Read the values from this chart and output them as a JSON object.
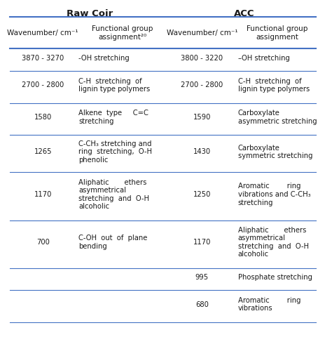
{
  "title_left": "Raw Coir",
  "title_right": "ACC",
  "col_headers": [
    "Wavenumber/ cm⁻¹",
    "Functional group\nassignment²⁰",
    "Wavenumber/ cm⁻¹",
    "Functional group\nassignment"
  ],
  "rows": [
    {
      "wn_left": "3870 - 3270",
      "fg_left": "-OH stretching",
      "wn_right": "3800 - 3220",
      "fg_right": "–OH stretching"
    },
    {
      "wn_left": "2700 - 2800",
      "fg_left": "C-H  stretching  of\nlignin type polymers",
      "wn_right": "2700 - 2800",
      "fg_right": "C-H  stretching  of\nlignin type polymers"
    },
    {
      "wn_left": "1580",
      "fg_left": "Alkene  type     C=C\nstretching",
      "wn_right": "1590",
      "fg_right": "Carboxylate\nasymmetric stretching"
    },
    {
      "wn_left": "1265",
      "fg_left": "C-CH₃ stretching and\nring  stretching,  O-H\nphenolic",
      "wn_right": "1430",
      "fg_right": "Carboxylate\nsymmetric stretching"
    },
    {
      "wn_left": "1170",
      "fg_left": "Aliphatic       ethers\nasymmetrical\nstretching  and  O-H\nalcoholic",
      "wn_right": "1250",
      "fg_right": "Aromatic        ring\nvibrations and C-CH₃\nstretching"
    },
    {
      "wn_left": "700",
      "fg_left": "C-OH  out  of  plane\nbending",
      "wn_right": "1170",
      "fg_right": "Aliphatic       ethers\nasymmetrical\nstretching  and  O-H\nalcoholic"
    },
    {
      "wn_left": "",
      "fg_left": "",
      "wn_right": "995",
      "fg_right": "Phosphate stretching"
    },
    {
      "wn_left": "",
      "fg_left": "",
      "wn_right": "680",
      "fg_right": "Aromatic        ring\nvibrations"
    }
  ],
  "bg_color": "#ffffff",
  "text_color": "#1a1a1a",
  "line_color": "#4472c4"
}
